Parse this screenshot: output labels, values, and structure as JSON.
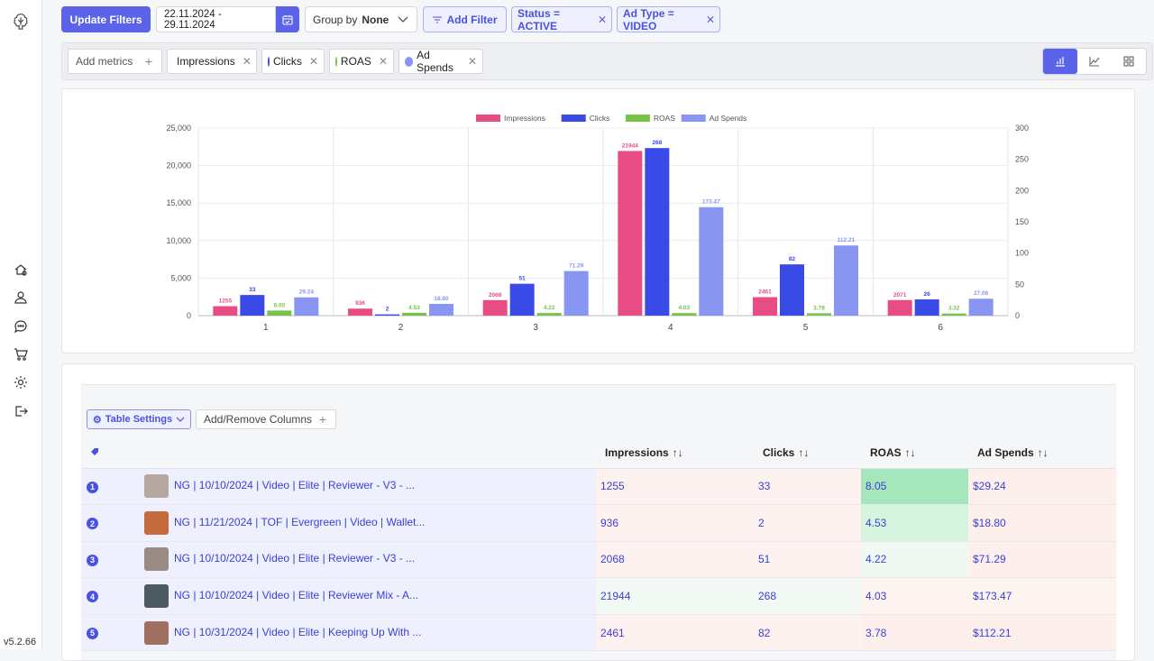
{
  "sidebar": {
    "version": "v5.2.66",
    "icons": [
      "logo-icon",
      "home-icon",
      "user-icon",
      "chat-icon",
      "cart-icon",
      "settings-icon",
      "logout-icon"
    ]
  },
  "topbar": {
    "update_label": "Update Filters",
    "date_range": "22.11.2024 - 29.11.2024",
    "group_by_label": "Group by",
    "group_by_value": "None",
    "add_filter_label": "Add Filter",
    "filters": [
      "Status = ACTIVE",
      "Ad Type = VIDEO"
    ]
  },
  "metrics": {
    "add_label": "Add metrics",
    "chips": [
      {
        "label": "Impressions",
        "color": "#e84c84"
      },
      {
        "label": "Clicks",
        "color": "#3a4ae6"
      },
      {
        "label": "ROAS",
        "color": "#77c34a"
      },
      {
        "label": "Ad Spends",
        "color": "#8896f2"
      }
    ]
  },
  "chart_data": {
    "type": "bar",
    "categories": [
      "1",
      "2",
      "3",
      "4",
      "5",
      "6"
    ],
    "series": [
      {
        "name": "Impressions",
        "axis": "left",
        "color": "#e84c84",
        "values": [
          1255,
          936,
          2068,
          21944,
          2461,
          2071
        ],
        "labels": [
          "1255",
          "936",
          "2068",
          "21944",
          "2461",
          "2071"
        ]
      },
      {
        "name": "Clicks",
        "axis": "right",
        "color": "#3a4ae6",
        "values": [
          33,
          2,
          51,
          268,
          82,
          26
        ],
        "labels": [
          "33",
          "2",
          "51",
          "268",
          "82",
          "26"
        ]
      },
      {
        "name": "ROAS",
        "axis": "right",
        "color": "#77c34a",
        "values": [
          8.05,
          4.53,
          4.22,
          4.03,
          3.78,
          3.32
        ],
        "labels": [
          "8.05",
          "4.53",
          "4.22",
          "4.03",
          "3.78",
          "3.32"
        ]
      },
      {
        "name": "Ad Spends",
        "axis": "right",
        "color": "#8896f2",
        "values": [
          29.24,
          18.8,
          71.29,
          173.47,
          112.21,
          27.06
        ],
        "labels": [
          "29.24",
          "18.80",
          "71.29",
          "173.47",
          "112.21",
          "27.06"
        ]
      }
    ],
    "ylim_left": [
      0,
      25000
    ],
    "yticks_left": [
      "0",
      "5,000",
      "10,000",
      "15,000",
      "20,000",
      "25,000"
    ],
    "ylim_right": [
      0,
      300
    ],
    "yticks_right": [
      "0",
      "50",
      "100",
      "150",
      "200",
      "250",
      "300"
    ],
    "legend": "top-center",
    "grid": true
  },
  "table": {
    "settings_label": "Table Settings",
    "add_columns_label": "Add/Remove Columns",
    "columns": [
      "Impressions",
      "Clicks",
      "ROAS",
      "Ad Spends"
    ],
    "rows": [
      {
        "num": "1",
        "name": "NG | 10/10/2024 | Video | Elite | Reviewer - V3 - ...",
        "impressions": "1255",
        "clicks": "33",
        "roas": "8.05",
        "spend": "$29.24",
        "roas_bg": "#a6e6bd"
      },
      {
        "num": "2",
        "name": "NG | 11/21/2024 | TOF | Evergreen | Video | Wallet...",
        "impressions": "936",
        "clicks": "2",
        "roas": "4.53",
        "spend": "$18.80",
        "roas_bg": "#d6f4de"
      },
      {
        "num": "3",
        "name": "NG | 10/10/2024 | Video | Elite | Reviewer - V3 - ...",
        "impressions": "2068",
        "clicks": "51",
        "roas": "4.22",
        "spend": "$71.29",
        "roas_bg": "#f0f9f1"
      },
      {
        "num": "4",
        "name": "NG | 10/10/2024 | Video | Elite | Reviewer Mix - A...",
        "impressions": "21944",
        "clicks": "268",
        "roas": "4.03",
        "spend": "$173.47",
        "roas_bg": "#fdf3ef"
      },
      {
        "num": "5",
        "name": "NG | 10/31/2024 | Video | Elite | Keeping Up With ...",
        "impressions": "2461",
        "clicks": "82",
        "roas": "3.78",
        "spend": "$112.21",
        "roas_bg": "#fdf0ec"
      }
    ]
  },
  "colors": {
    "accent": "#5b63e8",
    "accent_light": "#eef0fd"
  }
}
